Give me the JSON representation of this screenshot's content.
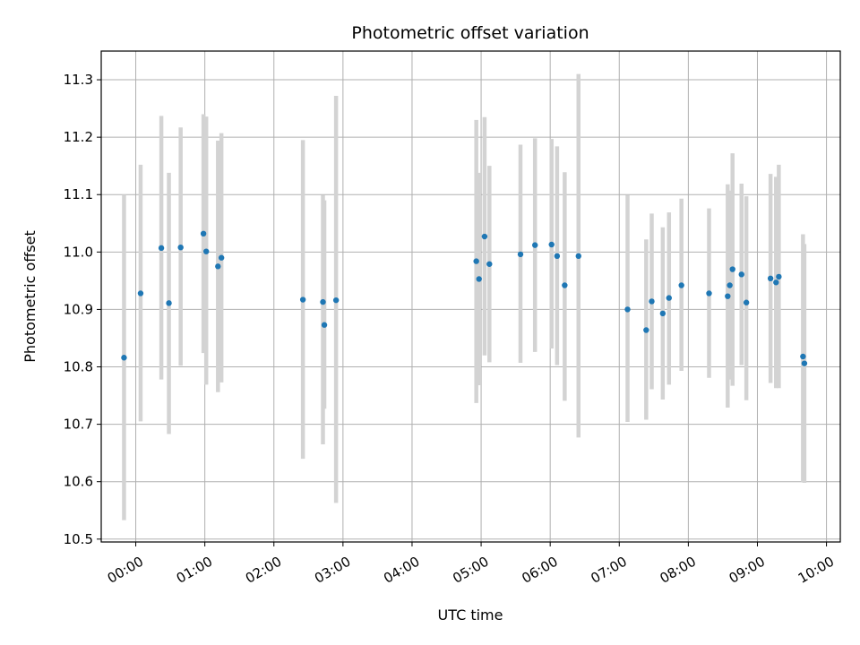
{
  "chart_data": {
    "type": "scatter",
    "title": "Photometric offset variation",
    "xlabel": "UTC time",
    "ylabel": "Photometric offset",
    "x_unit": "hours UTC",
    "xlim": [
      -0.5,
      10.2
    ],
    "ylim": [
      10.495,
      11.35
    ],
    "grid": true,
    "colors": {
      "point": "#1f77b4",
      "errorbar": "#d3d3d3",
      "grid": "#b0b0b0"
    },
    "xticks": [
      {
        "value": 0,
        "label": "00:00"
      },
      {
        "value": 1,
        "label": "01:00"
      },
      {
        "value": 2,
        "label": "02:00"
      },
      {
        "value": 3,
        "label": "03:00"
      },
      {
        "value": 4,
        "label": "04:00"
      },
      {
        "value": 5,
        "label": "05:00"
      },
      {
        "value": 6,
        "label": "06:00"
      },
      {
        "value": 7,
        "label": "07:00"
      },
      {
        "value": 8,
        "label": "08:00"
      },
      {
        "value": 9,
        "label": "09:00"
      },
      {
        "value": 10,
        "label": "10:00"
      }
    ],
    "yticks": [
      {
        "value": 10.5,
        "label": "10.5"
      },
      {
        "value": 10.6,
        "label": "10.6"
      },
      {
        "value": 10.7,
        "label": "10.7"
      },
      {
        "value": 10.8,
        "label": "10.8"
      },
      {
        "value": 10.9,
        "label": "10.9"
      },
      {
        "value": 11.0,
        "label": "11.0"
      },
      {
        "value": 11.1,
        "label": "11.1"
      },
      {
        "value": 11.2,
        "label": "11.2"
      },
      {
        "value": 11.3,
        "label": "11.3"
      }
    ],
    "points": [
      {
        "x": -0.17,
        "y": 10.816,
        "lo": 10.533,
        "hi": 11.1
      },
      {
        "x": 0.07,
        "y": 10.928,
        "lo": 10.705,
        "hi": 11.152
      },
      {
        "x": 0.37,
        "y": 11.007,
        "lo": 10.778,
        "hi": 11.237
      },
      {
        "x": 0.48,
        "y": 10.911,
        "lo": 10.683,
        "hi": 11.138
      },
      {
        "x": 0.65,
        "y": 11.008,
        "lo": 10.802,
        "hi": 11.217
      },
      {
        "x": 0.98,
        "y": 11.032,
        "lo": 10.824,
        "hi": 11.24
      },
      {
        "x": 1.02,
        "y": 11.001,
        "lo": 10.769,
        "hi": 11.236
      },
      {
        "x": 1.19,
        "y": 10.975,
        "lo": 10.756,
        "hi": 11.194
      },
      {
        "x": 1.24,
        "y": 10.99,
        "lo": 10.773,
        "hi": 11.207
      },
      {
        "x": 2.42,
        "y": 10.917,
        "lo": 10.64,
        "hi": 11.195
      },
      {
        "x": 2.71,
        "y": 10.913,
        "lo": 10.665,
        "hi": 11.099
      },
      {
        "x": 2.73,
        "y": 10.873,
        "lo": 10.727,
        "hi": 11.09
      },
      {
        "x": 2.9,
        "y": 10.916,
        "lo": 10.563,
        "hi": 11.272
      },
      {
        "x": 4.93,
        "y": 10.984,
        "lo": 10.737,
        "hi": 11.23
      },
      {
        "x": 4.97,
        "y": 10.953,
        "lo": 10.768,
        "hi": 11.138
      },
      {
        "x": 5.05,
        "y": 11.027,
        "lo": 10.82,
        "hi": 11.235
      },
      {
        "x": 5.12,
        "y": 10.979,
        "lo": 10.808,
        "hi": 11.15
      },
      {
        "x": 5.57,
        "y": 10.996,
        "lo": 10.807,
        "hi": 11.187
      },
      {
        "x": 5.78,
        "y": 11.012,
        "lo": 10.826,
        "hi": 11.198
      },
      {
        "x": 6.02,
        "y": 11.013,
        "lo": 10.832,
        "hi": 11.197
      },
      {
        "x": 6.1,
        "y": 10.993,
        "lo": 10.803,
        "hi": 11.184
      },
      {
        "x": 6.21,
        "y": 10.942,
        "lo": 10.741,
        "hi": 11.139
      },
      {
        "x": 6.41,
        "y": 10.993,
        "lo": 10.677,
        "hi": 11.31
      },
      {
        "x": 7.12,
        "y": 10.9,
        "lo": 10.704,
        "hi": 11.099
      },
      {
        "x": 7.39,
        "y": 10.864,
        "lo": 10.708,
        "hi": 11.022
      },
      {
        "x": 7.47,
        "y": 10.914,
        "lo": 10.761,
        "hi": 11.067
      },
      {
        "x": 7.63,
        "y": 10.893,
        "lo": 10.743,
        "hi": 11.043
      },
      {
        "x": 7.72,
        "y": 10.92,
        "lo": 10.769,
        "hi": 11.069
      },
      {
        "x": 7.9,
        "y": 10.942,
        "lo": 10.793,
        "hi": 11.093
      },
      {
        "x": 8.3,
        "y": 10.928,
        "lo": 10.781,
        "hi": 11.076
      },
      {
        "x": 8.57,
        "y": 10.923,
        "lo": 10.729,
        "hi": 11.118
      },
      {
        "x": 8.6,
        "y": 10.942,
        "lo": 10.778,
        "hi": 11.107
      },
      {
        "x": 8.64,
        "y": 10.97,
        "lo": 10.767,
        "hi": 11.172
      },
      {
        "x": 8.77,
        "y": 10.961,
        "lo": 10.803,
        "hi": 11.119
      },
      {
        "x": 8.84,
        "y": 10.912,
        "lo": 10.742,
        "hi": 11.097
      },
      {
        "x": 9.19,
        "y": 10.954,
        "lo": 10.772,
        "hi": 11.136
      },
      {
        "x": 9.27,
        "y": 10.947,
        "lo": 10.763,
        "hi": 11.131
      },
      {
        "x": 9.31,
        "y": 10.957,
        "lo": 10.763,
        "hi": 11.152
      },
      {
        "x": 9.66,
        "y": 10.818,
        "lo": 10.599,
        "hi": 11.031
      },
      {
        "x": 9.68,
        "y": 10.806,
        "lo": 10.598,
        "hi": 11.014
      }
    ]
  }
}
